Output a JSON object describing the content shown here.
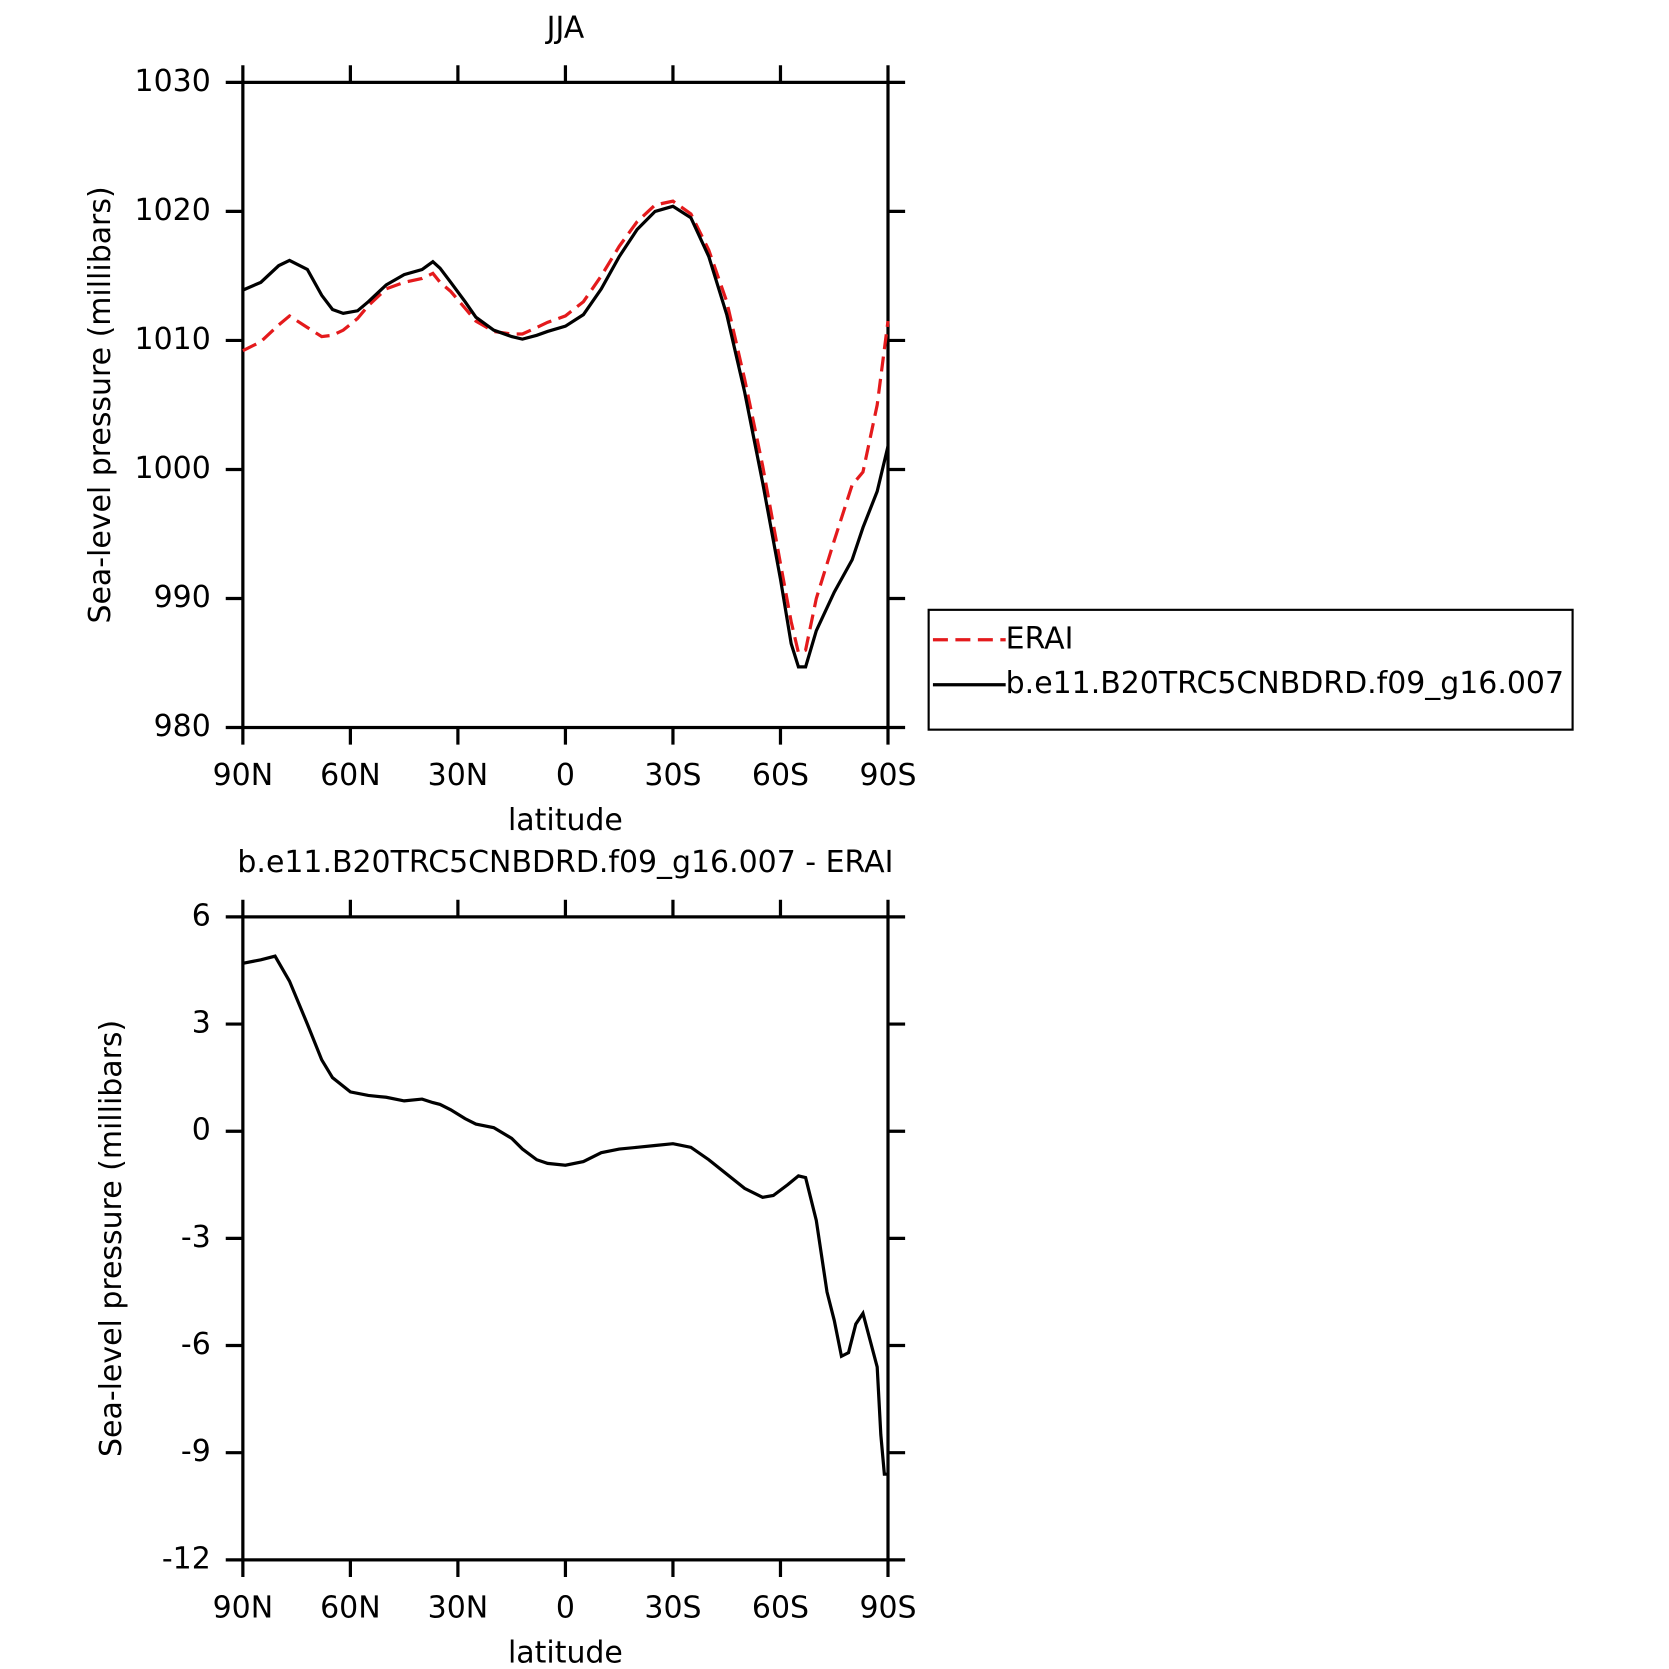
{
  "chart_data": [
    {
      "type": "line",
      "title": "JJA",
      "xlabel": "latitude",
      "ylabel": "Sea-level pressure (millibars)",
      "x": [
        90,
        85,
        80,
        77,
        72,
        68,
        65,
        62,
        58,
        55,
        50,
        45,
        40,
        37,
        35,
        32,
        28,
        25,
        20,
        15,
        12,
        8,
        5,
        0,
        -5,
        -10,
        -15,
        -20,
        -25,
        -30,
        -35,
        -40,
        -45,
        -50,
        -55,
        -60,
        -63,
        -65,
        -67,
        -70,
        -75,
        -80,
        -83,
        -87,
        -90
      ],
      "series": [
        {
          "name": "ERAI",
          "color": "#e41a1c",
          "dash": true,
          "values": [
            1009.2,
            1009.9,
            1011.2,
            1011.9,
            1011,
            1010.3,
            1010.4,
            1010.8,
            1011.7,
            1012.7,
            1014,
            1014.5,
            1014.8,
            1015.2,
            1014.5,
            1013.8,
            1012.5,
            1011.5,
            1010.7,
            1010.5,
            1010.5,
            1011,
            1011.4,
            1011.9,
            1013,
            1015,
            1017.3,
            1019.2,
            1020.5,
            1020.8,
            1019.8,
            1017,
            1013,
            1007,
            1000.3,
            992.7,
            988.2,
            985.8,
            986,
            990,
            994.5,
            998.8,
            999.8,
            1005,
            1011.5
          ]
        },
        {
          "name": "b.e11.B20TRC5CNBDRD.f09_g16.007",
          "color": "#000000",
          "dash": false,
          "values": [
            1013.9,
            1014.5,
            1015.8,
            1016.2,
            1015.5,
            1013.5,
            1012.4,
            1012.1,
            1012.3,
            1013,
            1014.3,
            1015.1,
            1015.5,
            1016.1,
            1015.6,
            1014.5,
            1013,
            1011.8,
            1010.8,
            1010.3,
            1010.1,
            1010.4,
            1010.7,
            1011.1,
            1012,
            1014,
            1016.5,
            1018.6,
            1020,
            1020.4,
            1019.5,
            1016.5,
            1012,
            1006,
            999,
            991.5,
            986.5,
            984.7,
            984.7,
            987.5,
            990.5,
            993,
            995.5,
            998.3,
            1001.8
          ]
        }
      ],
      "xlim": [
        90,
        -90
      ],
      "xticks": [
        {
          "value": 90,
          "label": "90N"
        },
        {
          "value": 60,
          "label": "60N"
        },
        {
          "value": 30,
          "label": "30N"
        },
        0,
        {
          "value": -30,
          "label": "30S"
        },
        {
          "value": -60,
          "label": "60S"
        },
        {
          "value": -90,
          "label": "90S"
        }
      ],
      "ylim": [
        980,
        1030
      ],
      "yticks": [
        980,
        990,
        1000,
        1010,
        1020,
        1030
      ],
      "legend": "right"
    },
    {
      "type": "line",
      "title": "b.e11.B20TRC5CNBDRD.f09_g16.007 - ERAI",
      "xlabel": "latitude",
      "ylabel": "Sea-level pressure (millibars)",
      "x": [
        90,
        85,
        81,
        77,
        72,
        68,
        65,
        60,
        55,
        50,
        45,
        40,
        37,
        35,
        32,
        28,
        25,
        20,
        15,
        12,
        8,
        5,
        0,
        -5,
        -10,
        -15,
        -20,
        -25,
        -30,
        -35,
        -40,
        -45,
        -50,
        -55,
        -58,
        -62,
        -65,
        -67,
        -70,
        -73,
        -75,
        -77,
        -79,
        -81,
        -83,
        -87,
        -88,
        -89,
        -90
      ],
      "values": [
        4.7,
        4.8,
        4.9,
        4.2,
        3,
        2,
        1.5,
        1.1,
        1,
        0.95,
        0.85,
        0.9,
        0.8,
        0.75,
        0.6,
        0.35,
        0.2,
        0.1,
        -0.2,
        -0.5,
        -0.8,
        -0.9,
        -0.95,
        -0.85,
        -0.6,
        -0.5,
        -0.45,
        -0.4,
        -0.35,
        -0.45,
        -0.8,
        -1.2,
        -1.6,
        -1.85,
        -1.8,
        -1.5,
        -1.25,
        -1.3,
        -2.5,
        -4.5,
        -5.3,
        -6.3,
        -6.2,
        -5.4,
        -5.1,
        -6.6,
        -8.5,
        -9.6,
        -9.6
      ],
      "color": "#000000",
      "xlim": [
        90,
        -90
      ],
      "xticks": [
        {
          "value": 90,
          "label": "90N"
        },
        {
          "value": 60,
          "label": "60N"
        },
        {
          "value": 30,
          "label": "30N"
        },
        0,
        {
          "value": -30,
          "label": "30S"
        },
        {
          "value": -60,
          "label": "60S"
        },
        {
          "value": -90,
          "label": "90S"
        }
      ],
      "ylim": [
        -12,
        6
      ],
      "yticks": [
        -12,
        -9,
        -6,
        -3,
        0,
        3,
        6
      ]
    }
  ]
}
